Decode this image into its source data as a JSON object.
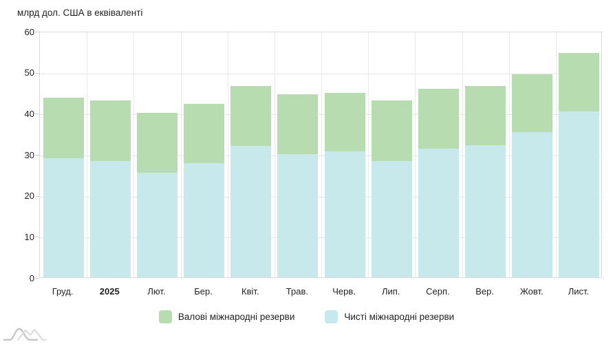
{
  "chart_data": {
    "type": "bar",
    "title": "млрд дол. США в еквіваленті",
    "categories": [
      "Груд.",
      "2025",
      "Лют.",
      "Бер.",
      "Квіт.",
      "Трав.",
      "Черв.",
      "Лип.",
      "Серп.",
      "Вер.",
      "Жовт.",
      "Лист."
    ],
    "bold_categories": [
      "2025"
    ],
    "series": [
      {
        "name": "Валові міжнародні резерви",
        "color": "#b6dcb0",
        "values": [
          43.7,
          43.0,
          40.1,
          42.3,
          46.6,
          44.5,
          45.0,
          43.0,
          46.0,
          46.6,
          49.5,
          54.7
        ]
      },
      {
        "name": "Чисті міжнародні резерви",
        "color": "#c8e9ec",
        "values": [
          29.0,
          28.3,
          25.5,
          27.9,
          32.0,
          30.0,
          30.6,
          28.3,
          31.4,
          32.2,
          35.3,
          40.4
        ]
      }
    ],
    "ylabel": "",
    "xlabel": "",
    "ylim": [
      0,
      60
    ],
    "ytick_step": 10,
    "yticks": [
      0,
      10,
      20,
      30,
      40,
      50,
      60
    ],
    "grid": true,
    "legend_position": "bottom"
  },
  "colors": {
    "grid": "#e6e6e6",
    "axis_border": "#d9d9d9",
    "text": "#222222",
    "watermark": "#c9c9c9"
  }
}
